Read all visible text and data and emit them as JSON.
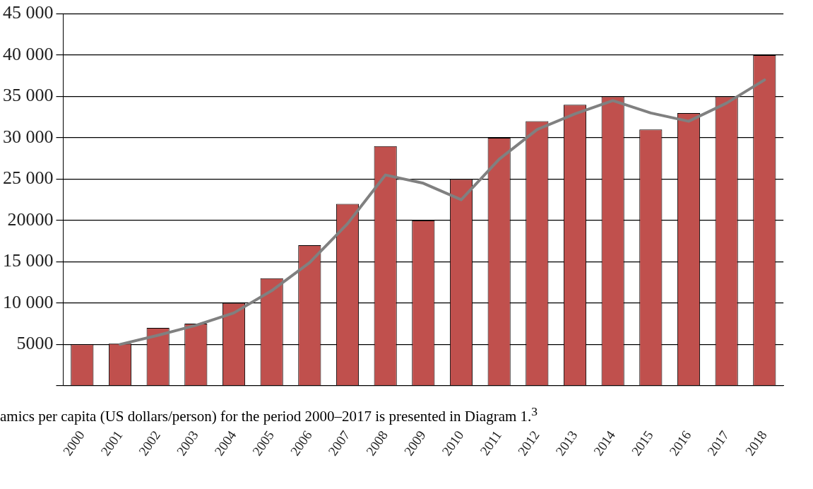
{
  "chart_data": {
    "type": "bar",
    "categories": [
      "2000",
      "2001",
      "2002",
      "2003",
      "2004",
      "2005",
      "2006",
      "2007",
      "2008",
      "2009",
      "2010",
      "2011",
      "2012",
      "2013",
      "2014",
      "2015",
      "2016",
      "2017",
      "2018"
    ],
    "series": [
      {
        "color": "#c0504d",
        "values": [
          5000,
          5100,
          7000,
          7500,
          10000,
          13000,
          17000,
          22000,
          29000,
          20000,
          25000,
          30000,
          32000,
          34000,
          35000,
          31000,
          33000,
          35000,
          40000
        ]
      },
      {
        "type": "line",
        "color": "#808080",
        "values": [
          null,
          5000,
          6100,
          7300,
          8800,
          11500,
          14900,
          19600,
          25500,
          24500,
          22500,
          27400,
          31000,
          32900,
          34500,
          33000,
          32000,
          34200,
          37000
        ]
      }
    ],
    "ylim": [
      0,
      45000
    ],
    "yticks": [
      {
        "value": 0,
        "label": null
      },
      5000,
      {
        "value": 10000,
        "label": "10 000"
      },
      {
        "value": 15000,
        "label": "15 000"
      },
      20000,
      {
        "value": 25000,
        "label": "25 000"
      },
      {
        "value": 30000,
        "label": "30 000"
      },
      {
        "value": 35000,
        "label": "35 000"
      },
      {
        "value": 40000,
        "label": "40 000"
      },
      {
        "value": 45000,
        "label": "45 000"
      }
    ],
    "grid": "y",
    "legend": false,
    "marker": "none",
    "line_style": "solid",
    "annotations": [
      "amics per capita (US dollars/person) for the period 2000–2017 is presented in Diagram 1.$^{3}$"
    ]
  }
}
